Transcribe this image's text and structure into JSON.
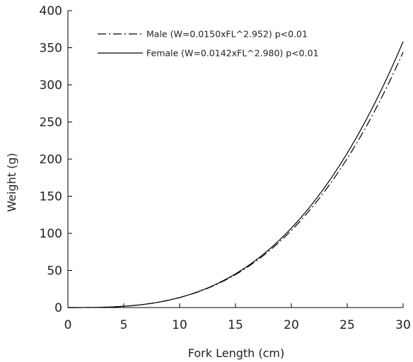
{
  "chart_data": {
    "type": "line",
    "title": "",
    "xlabel": "Fork Length (cm)",
    "ylabel": "Weight (g)",
    "xlim": [
      0,
      30
    ],
    "ylim": [
      0,
      400
    ],
    "x_ticks": [
      0,
      5,
      10,
      15,
      20,
      25,
      30
    ],
    "y_ticks": [
      0,
      50,
      100,
      150,
      200,
      250,
      300,
      350,
      400
    ],
    "grid": false,
    "legend_position": "top-left",
    "series": [
      {
        "name": "Male (W=0.0150xFL^2.952) p<0.01",
        "line_style": "dash-dot",
        "color": "#000000",
        "a": 0.015,
        "b": 2.952,
        "x": [
          0,
          2.5,
          5,
          7.5,
          10,
          12.5,
          15,
          17.5,
          20,
          22.5,
          25,
          27.5,
          30
        ],
        "values": [
          0,
          0.2,
          1.7,
          5.4,
          13.4,
          25.8,
          44.4,
          70.1,
          104.1,
          147.3,
          202.8,
          268.4,
          346.1
        ]
      },
      {
        "name": "Female (W=0.0142xFL^2.980) p<0.01",
        "line_style": "solid",
        "color": "#000000",
        "a": 0.0142,
        "b": 2.98,
        "x": [
          0,
          2.5,
          5,
          7.5,
          10,
          12.5,
          15,
          17.5,
          20,
          22.5,
          25,
          27.5,
          30
        ],
        "values": [
          0,
          0.2,
          1.7,
          5.6,
          13.6,
          26.8,
          45.3,
          71.6,
          107.0,
          151.7,
          208.4,
          276.9,
          358.8
        ]
      }
    ]
  }
}
